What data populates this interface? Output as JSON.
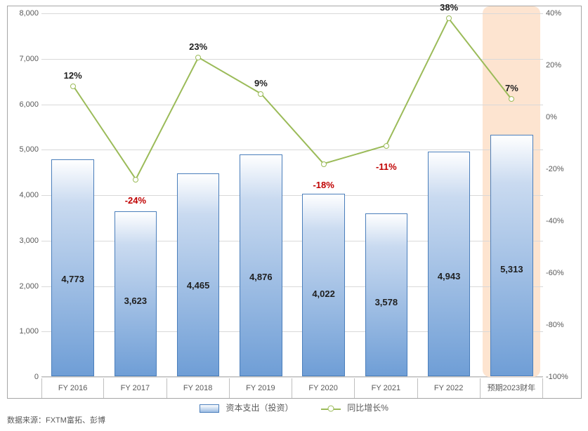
{
  "chart": {
    "background_color": "#ffffff",
    "border_color": "#a6a6a6",
    "grid_color": "#d9d9d9",
    "axis_color": "#bfbfbf",
    "label_color": "#595959",
    "categories": [
      "FY 2016",
      "FY 2017",
      "FY 2018",
      "FY 2019",
      "FY 2020",
      "FY 2021",
      "FY 2022",
      "预期2023财年"
    ],
    "bars": {
      "series_name": "资本支出（投资）",
      "values": [
        4773,
        3623,
        4465,
        4876,
        4022,
        3578,
        4943,
        5313
      ],
      "labels": [
        "4,773",
        "3,623",
        "4,465",
        "4,876",
        "4,022",
        "3,578",
        "4,943",
        "5,313"
      ],
      "fill_gradient": [
        "#ffffff",
        "#c9daf0",
        "#9cbce3",
        "#6f9ed6"
      ],
      "border_color": "#4a7ebb",
      "bar_width_ratio": 0.68,
      "label_fontsize": 13,
      "label_fontweight": "bold",
      "label_color": "#1f1f1f"
    },
    "line": {
      "series_name": "同比增长%",
      "values": [
        12,
        -24,
        23,
        9,
        -18,
        -11,
        38,
        7
      ],
      "labels": [
        "12%",
        "-24%",
        "23%",
        "9%",
        "-18%",
        "-11%",
        "38%",
        "7%"
      ],
      "negative_color": "#c00000",
      "positive_color": "#1f1f1f",
      "line_color": "#9bbb59",
      "line_width": 2,
      "marker_style": "circle",
      "marker_size": 8,
      "marker_fill": "#ffffff",
      "marker_border": "#9bbb59",
      "label_fontsize": 13,
      "label_fontweight": "bold"
    },
    "y_left": {
      "min": 0,
      "max": 8000,
      "step": 1000,
      "tick_labels": [
        "0",
        "1,000",
        "2,000",
        "3,000",
        "4,000",
        "5,000",
        "6,000",
        "7,000",
        "8,000"
      ],
      "fontsize": 11
    },
    "y_right": {
      "min": -100,
      "max": 40,
      "step": 20,
      "tick_labels": [
        "-100%",
        "-80%",
        "-60%",
        "-40%",
        "-20%",
        "0%",
        "20%",
        "40%"
      ],
      "fontsize": 11
    },
    "highlight": {
      "category_index": 7,
      "fill_color": "#fde4d0",
      "border_radius": 10
    },
    "legend": {
      "items": [
        "资本支出（投资）",
        "同比增长%"
      ],
      "fontsize": 12
    }
  },
  "source_text": "数据来源：FXTM富拓、彭博"
}
